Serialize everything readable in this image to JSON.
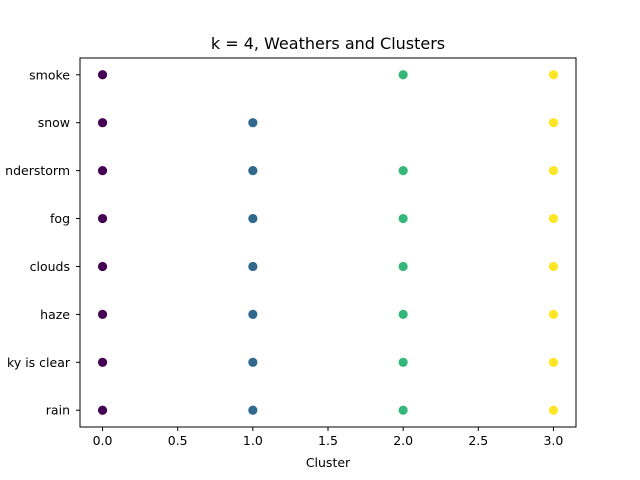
{
  "chart_data": {
    "type": "scatter",
    "title": "k = 4, Weathers and Clusters",
    "xlabel": "Cluster",
    "ylabel": "",
    "xlim": [
      -0.15,
      3.15
    ],
    "ylim": [
      -0.35,
      7.35
    ],
    "x_ticks": [
      "0.0",
      "0.5",
      "1.0",
      "1.5",
      "2.0",
      "2.5",
      "3.0"
    ],
    "y_categories": [
      "rain",
      "sky is clear",
      "haze",
      "clouds",
      "fog",
      "thunderstorm",
      "snow",
      "smoke"
    ],
    "y_tick_labels_visible": [
      "rain",
      "ky is clear",
      "haze",
      "clouds",
      "fog",
      "nderstorm",
      "snow",
      "smoke"
    ],
    "grid": false,
    "cluster_colors": [
      "#440154",
      "#31688e",
      "#35b779",
      "#fde725"
    ],
    "points": [
      {
        "cluster": 0,
        "weather": "smoke"
      },
      {
        "cluster": 2,
        "weather": "smoke"
      },
      {
        "cluster": 3,
        "weather": "smoke"
      },
      {
        "cluster": 0,
        "weather": "snow"
      },
      {
        "cluster": 1,
        "weather": "snow"
      },
      {
        "cluster": 3,
        "weather": "snow"
      },
      {
        "cluster": 0,
        "weather": "thunderstorm"
      },
      {
        "cluster": 1,
        "weather": "thunderstorm"
      },
      {
        "cluster": 2,
        "weather": "thunderstorm"
      },
      {
        "cluster": 3,
        "weather": "thunderstorm"
      },
      {
        "cluster": 0,
        "weather": "fog"
      },
      {
        "cluster": 1,
        "weather": "fog"
      },
      {
        "cluster": 2,
        "weather": "fog"
      },
      {
        "cluster": 3,
        "weather": "fog"
      },
      {
        "cluster": 0,
        "weather": "clouds"
      },
      {
        "cluster": 1,
        "weather": "clouds"
      },
      {
        "cluster": 2,
        "weather": "clouds"
      },
      {
        "cluster": 3,
        "weather": "clouds"
      },
      {
        "cluster": 0,
        "weather": "haze"
      },
      {
        "cluster": 1,
        "weather": "haze"
      },
      {
        "cluster": 2,
        "weather": "haze"
      },
      {
        "cluster": 3,
        "weather": "haze"
      },
      {
        "cluster": 0,
        "weather": "sky is clear"
      },
      {
        "cluster": 1,
        "weather": "sky is clear"
      },
      {
        "cluster": 2,
        "weather": "sky is clear"
      },
      {
        "cluster": 3,
        "weather": "sky is clear"
      },
      {
        "cluster": 0,
        "weather": "rain"
      },
      {
        "cluster": 1,
        "weather": "rain"
      },
      {
        "cluster": 2,
        "weather": "rain"
      },
      {
        "cluster": 3,
        "weather": "rain"
      }
    ]
  }
}
